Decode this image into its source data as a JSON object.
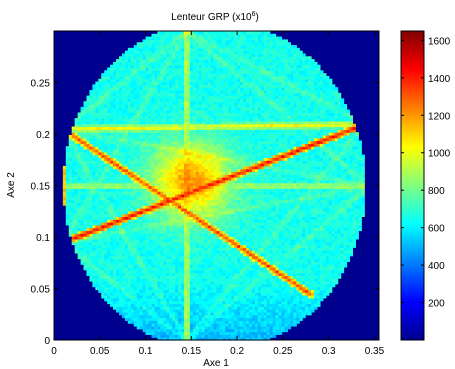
{
  "chart_data": {
    "type": "heatmap",
    "title": "Lenteur GRP (x10",
    "title_sup": "6",
    "title_close": ")",
    "xlabel": "Axe 1",
    "ylabel": "Axe 2",
    "xlim": [
      0,
      0.355
    ],
    "ylim": [
      0,
      0.3
    ],
    "x_ticks": [
      "0",
      "0.05",
      "0.1",
      "0.15",
      "0.2",
      "0.25",
      "0.3",
      "0.35"
    ],
    "y_ticks": [
      "0",
      "0.05",
      "0.1",
      "0.15",
      "0.2",
      "0.25"
    ],
    "colorbar": {
      "ticks": [
        "200",
        "400",
        "600",
        "800",
        "1000",
        "1200",
        "1400",
        "1600"
      ],
      "range": [
        0,
        1650
      ],
      "colormap": "jet"
    },
    "background_value": 0,
    "domain": {
      "shape": "polygon-disc",
      "center": [
        0.175,
        0.15
      ],
      "radius": 0.165
    },
    "base_value": 650,
    "hotspot": {
      "center": [
        0.15,
        0.155
      ],
      "peak": 1200
    },
    "ray_endpoints": [
      [
        0.145,
        0.3
      ],
      [
        0.145,
        0.0
      ],
      [
        0.01,
        0.205
      ],
      [
        0.01,
        0.095
      ],
      [
        0.34,
        0.21
      ],
      [
        0.345,
        0.15
      ]
    ],
    "bright_rays": [
      {
        "from": [
          0.01,
          0.095
        ],
        "to": [
          0.34,
          0.21
        ],
        "value": 1450
      },
      {
        "from": [
          0.01,
          0.205
        ],
        "to": [
          0.34,
          0.21
        ],
        "value": 1050
      },
      {
        "from": [
          0.145,
          0.3
        ],
        "to": [
          0.145,
          0.0
        ],
        "value": 1000
      },
      {
        "from": [
          0.01,
          0.205
        ],
        "to": [
          0.28,
          0.045
        ],
        "value": 1350
      },
      {
        "from": [
          0.01,
          0.205
        ],
        "to": [
          0.01,
          0.095
        ],
        "value": 1250
      },
      {
        "from": [
          0.01,
          0.15
        ],
        "to": [
          0.345,
          0.15
        ],
        "value": 950
      },
      {
        "from": [
          0.01,
          0.095
        ],
        "to": [
          0.34,
          0.095
        ],
        "value": 700
      }
    ]
  }
}
